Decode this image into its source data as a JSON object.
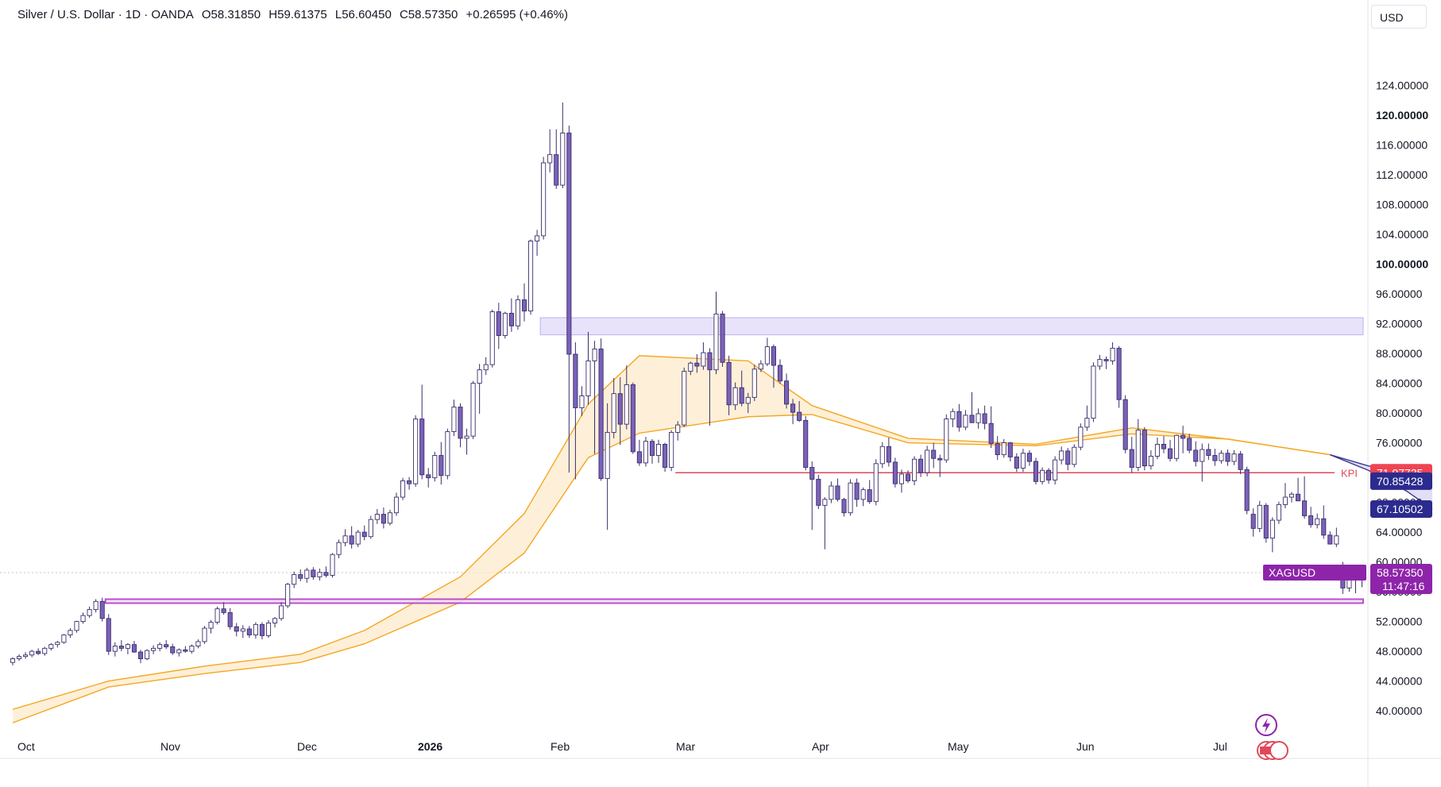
{
  "header": {
    "symbol": "Silver / U.S. Dollar · 1D · OANDA",
    "open": "O58.31850",
    "high": "H59.61375",
    "low": "L56.60450",
    "close": "C58.57350",
    "change": "+0.26595 (+0.46%)"
  },
  "currency_label": "USD",
  "colors": {
    "up_fill": "#ffffff",
    "down_fill": "#7b61b8",
    "candle_outline": "#3b2f6b",
    "ma_band": "#f5a623",
    "kpi_line": "#e0485a",
    "zone_upper": "#b6a8f0",
    "zone_lower": "#b43fc8",
    "price_label": "#8e24aa",
    "navy_label": "#2b2b8f"
  },
  "chart_data": {
    "type": "candlestick",
    "y_axis": {
      "ticks": [
        "124.00000",
        "120.00000",
        "116.00000",
        "112.00000",
        "108.00000",
        "104.00000",
        "100.00000",
        "96.00000",
        "92.00000",
        "88.00000",
        "84.00000",
        "80.00000",
        "76.00000",
        "72.00000",
        "68.00000",
        "64.00000",
        "60.00000",
        "56.00000",
        "52.00000",
        "48.00000",
        "44.00000",
        "40.00000"
      ],
      "bold_ticks": [
        "120.00000",
        "100.00000"
      ],
      "ylim": [
        36.6,
        128.0
      ]
    },
    "x_axis": {
      "labels": [
        "Oct",
        "Nov",
        "Dec",
        "2026",
        "Feb",
        "Mar",
        "Apr",
        "May",
        "Jun",
        "Jul"
      ],
      "bold_labels": [
        "2026"
      ]
    },
    "candles": [
      [
        46.5,
        47.2,
        46.1,
        47.0
      ],
      [
        47.0,
        47.6,
        46.7,
        47.3
      ],
      [
        47.3,
        47.9,
        47.0,
        47.5
      ],
      [
        47.5,
        48.2,
        47.2,
        48.0
      ],
      [
        48.0,
        48.4,
        47.5,
        47.7
      ],
      [
        47.7,
        48.6,
        47.4,
        48.4
      ],
      [
        48.4,
        49.1,
        48.1,
        48.9
      ],
      [
        48.9,
        49.4,
        48.5,
        49.2
      ],
      [
        49.2,
        50.3,
        49.0,
        50.2
      ],
      [
        50.2,
        51.1,
        49.8,
        50.8
      ],
      [
        50.8,
        52.1,
        50.5,
        52.0
      ],
      [
        52.0,
        53.2,
        51.7,
        52.8
      ],
      [
        52.8,
        54.0,
        52.5,
        53.6
      ],
      [
        53.6,
        55.0,
        53.2,
        54.7
      ],
      [
        54.7,
        55.2,
        52.0,
        52.4
      ],
      [
        52.4,
        53.0,
        47.5,
        48.0
      ],
      [
        48.0,
        49.2,
        47.3,
        48.7
      ],
      [
        48.7,
        49.5,
        48.0,
        48.4
      ],
      [
        48.4,
        49.1,
        47.6,
        48.9
      ],
      [
        48.9,
        49.4,
        47.8,
        47.9
      ],
      [
        47.9,
        48.2,
        46.4,
        47.0
      ],
      [
        47.0,
        48.3,
        46.8,
        48.1
      ],
      [
        48.1,
        48.8,
        47.6,
        48.4
      ],
      [
        48.4,
        49.2,
        48.0,
        48.9
      ],
      [
        48.9,
        49.5,
        48.3,
        48.6
      ],
      [
        48.6,
        49.0,
        47.5,
        47.8
      ],
      [
        47.8,
        48.4,
        47.3,
        48.2
      ],
      [
        48.2,
        48.7,
        47.8,
        48.0
      ],
      [
        48.0,
        48.9,
        47.7,
        48.7
      ],
      [
        48.7,
        49.6,
        48.4,
        49.3
      ],
      [
        49.3,
        51.4,
        49.0,
        51.1
      ],
      [
        51.1,
        52.2,
        50.4,
        51.9
      ],
      [
        51.9,
        54.0,
        51.6,
        53.7
      ],
      [
        53.7,
        54.6,
        52.9,
        53.2
      ],
      [
        53.2,
        53.8,
        50.9,
        51.3
      ],
      [
        51.3,
        51.8,
        50.0,
        50.7
      ],
      [
        50.7,
        51.5,
        49.8,
        51.0
      ],
      [
        51.0,
        51.4,
        49.8,
        50.2
      ],
      [
        50.2,
        51.9,
        49.7,
        51.6
      ],
      [
        51.6,
        51.9,
        49.6,
        50.1
      ],
      [
        50.1,
        52.2,
        49.8,
        51.8
      ],
      [
        51.8,
        52.6,
        51.2,
        52.4
      ],
      [
        52.4,
        54.6,
        52.1,
        54.1
      ],
      [
        54.1,
        57.2,
        53.8,
        57.0
      ],
      [
        57.0,
        58.7,
        56.5,
        58.3
      ],
      [
        58.3,
        59.0,
        57.4,
        57.8
      ],
      [
        57.8,
        59.2,
        57.2,
        58.9
      ],
      [
        58.9,
        59.3,
        57.6,
        58.0
      ],
      [
        58.0,
        59.1,
        57.5,
        58.6
      ],
      [
        58.6,
        59.4,
        57.9,
        58.2
      ],
      [
        58.2,
        61.2,
        57.9,
        61.0
      ],
      [
        61.0,
        63.0,
        60.5,
        62.6
      ],
      [
        62.6,
        64.4,
        62.1,
        63.5
      ],
      [
        63.5,
        64.8,
        61.8,
        62.4
      ],
      [
        62.4,
        64.3,
        62.0,
        64.0
      ],
      [
        64.0,
        64.9,
        62.9,
        63.4
      ],
      [
        63.4,
        66.2,
        63.1,
        65.7
      ],
      [
        65.7,
        67.1,
        65.1,
        66.4
      ],
      [
        66.4,
        67.3,
        64.5,
        65.2
      ],
      [
        65.2,
        67.0,
        64.9,
        66.6
      ],
      [
        66.6,
        69.3,
        66.2,
        68.7
      ],
      [
        68.7,
        71.3,
        68.3,
        70.9
      ],
      [
        70.9,
        71.4,
        69.7,
        70.5
      ],
      [
        70.5,
        79.7,
        70.1,
        79.2
      ],
      [
        79.2,
        83.8,
        71.1,
        71.7
      ],
      [
        71.7,
        72.6,
        70.0,
        71.3
      ],
      [
        71.3,
        74.8,
        70.8,
        74.3
      ],
      [
        74.3,
        76.1,
        70.4,
        71.6
      ],
      [
        71.6,
        77.9,
        71.1,
        77.5
      ],
      [
        77.5,
        81.8,
        76.9,
        80.8
      ],
      [
        80.8,
        81.3,
        75.4,
        76.6
      ],
      [
        76.6,
        77.9,
        74.4,
        76.9
      ],
      [
        76.9,
        84.3,
        76.5,
        84.0
      ],
      [
        84.0,
        86.6,
        79.9,
        85.8
      ],
      [
        85.8,
        87.5,
        85.1,
        86.5
      ],
      [
        86.5,
        93.9,
        86.1,
        93.6
      ],
      [
        93.6,
        94.8,
        88.6,
        90.4
      ],
      [
        90.4,
        93.6,
        90.0,
        93.4
      ],
      [
        93.4,
        95.4,
        90.9,
        91.7
      ],
      [
        91.7,
        95.8,
        91.2,
        95.2
      ],
      [
        95.2,
        97.4,
        92.3,
        93.7
      ],
      [
        93.7,
        103.3,
        93.2,
        103.1
      ],
      [
        103.1,
        104.6,
        101.1,
        103.8
      ],
      [
        103.8,
        114.4,
        103.3,
        113.6
      ],
      [
        113.6,
        118.1,
        112.3,
        114.7
      ],
      [
        114.7,
        118.1,
        110.1,
        110.6
      ],
      [
        110.6,
        121.7,
        110.2,
        117.6
      ],
      [
        117.6,
        118.6,
        72.0,
        87.9
      ],
      [
        87.9,
        89.5,
        71.1,
        80.7
      ],
      [
        80.7,
        83.6,
        79.6,
        82.3
      ],
      [
        82.3,
        90.9,
        81.1,
        87.0
      ],
      [
        87.0,
        89.7,
        74.5,
        88.6
      ],
      [
        88.6,
        90.0,
        70.9,
        71.2
      ],
      [
        71.2,
        81.3,
        64.3,
        77.4
      ],
      [
        77.4,
        84.7,
        76.6,
        82.6
      ],
      [
        82.6,
        84.8,
        75.7,
        78.5
      ],
      [
        78.5,
        86.4,
        77.8,
        83.8
      ],
      [
        83.8,
        84.1,
        74.5,
        74.8
      ],
      [
        74.8,
        76.4,
        72.9,
        73.3
      ],
      [
        73.3,
        76.8,
        72.8,
        76.2
      ],
      [
        76.2,
        76.5,
        73.2,
        74.3
      ],
      [
        74.3,
        76.4,
        73.3,
        75.8
      ],
      [
        75.8,
        76.0,
        72.1,
        72.7
      ],
      [
        72.7,
        77.7,
        72.2,
        77.4
      ],
      [
        77.4,
        78.9,
        76.3,
        78.4
      ],
      [
        78.4,
        86.1,
        78.1,
        85.6
      ],
      [
        85.6,
        86.9,
        85.1,
        86.7
      ],
      [
        86.7,
        87.9,
        85.4,
        86.3
      ],
      [
        86.3,
        89.5,
        85.8,
        88.1
      ],
      [
        88.1,
        88.7,
        78.3,
        85.8
      ],
      [
        85.8,
        96.3,
        85.2,
        93.3
      ],
      [
        93.3,
        93.7,
        86.2,
        86.8
      ],
      [
        86.8,
        87.7,
        79.7,
        81.1
      ],
      [
        81.1,
        84.1,
        80.4,
        83.4
      ],
      [
        83.4,
        85.7,
        80.9,
        81.3
      ],
      [
        81.3,
        82.7,
        80.0,
        82.1
      ],
      [
        82.1,
        86.5,
        81.6,
        85.9
      ],
      [
        85.9,
        87.1,
        85.5,
        86.6
      ],
      [
        86.6,
        90.1,
        86.3,
        88.9
      ],
      [
        88.9,
        89.2,
        83.4,
        86.4
      ],
      [
        86.4,
        87.2,
        83.9,
        84.3
      ],
      [
        84.3,
        85.3,
        80.6,
        81.2
      ],
      [
        81.2,
        81.9,
        78.5,
        80.1
      ],
      [
        80.1,
        81.6,
        78.8,
        79.0
      ],
      [
        79.0,
        79.6,
        72.3,
        72.7
      ],
      [
        72.7,
        73.5,
        64.3,
        71.1
      ],
      [
        71.1,
        71.7,
        67.1,
        67.6
      ],
      [
        67.6,
        68.7,
        61.7,
        68.4
      ],
      [
        68.4,
        70.8,
        67.9,
        70.2
      ],
      [
        70.2,
        71.2,
        68.1,
        68.4
      ],
      [
        68.4,
        68.6,
        66.1,
        66.6
      ],
      [
        66.6,
        71.1,
        66.2,
        70.6
      ],
      [
        70.6,
        71.2,
        67.4,
        68.4
      ],
      [
        68.4,
        70.0,
        67.5,
        69.7
      ],
      [
        69.7,
        71.0,
        67.8,
        68.1
      ],
      [
        68.1,
        73.8,
        67.6,
        73.2
      ],
      [
        73.2,
        76.1,
        72.6,
        75.5
      ],
      [
        75.5,
        76.7,
        72.8,
        73.4
      ],
      [
        73.4,
        74.0,
        70.0,
        70.5
      ],
      [
        70.5,
        72.4,
        69.3,
        71.8
      ],
      [
        71.8,
        72.3,
        70.6,
        70.9
      ],
      [
        70.9,
        74.2,
        70.3,
        73.8
      ],
      [
        73.8,
        74.4,
        71.4,
        72.0
      ],
      [
        72.0,
        75.6,
        71.5,
        75.0
      ],
      [
        75.0,
        76.0,
        72.6,
        73.9
      ],
      [
        73.9,
        74.4,
        71.4,
        73.7
      ],
      [
        73.7,
        79.8,
        73.3,
        79.2
      ],
      [
        79.2,
        80.6,
        78.1,
        80.2
      ],
      [
        80.2,
        81.2,
        77.5,
        78.1
      ],
      [
        78.1,
        80.4,
        77.7,
        79.7
      ],
      [
        79.7,
        82.8,
        79.1,
        78.7
      ],
      [
        78.7,
        80.6,
        77.9,
        79.9
      ],
      [
        79.9,
        81.0,
        77.8,
        78.6
      ],
      [
        78.6,
        80.9,
        75.3,
        75.9
      ],
      [
        75.9,
        76.9,
        73.7,
        74.4
      ],
      [
        74.4,
        76.5,
        74.0,
        76.0
      ],
      [
        76.0,
        76.1,
        73.5,
        74.1
      ],
      [
        74.1,
        74.6,
        72.1,
        72.6
      ],
      [
        72.6,
        75.2,
        72.1,
        74.6
      ],
      [
        74.6,
        75.0,
        72.9,
        73.5
      ],
      [
        73.5,
        74.0,
        70.4,
        70.8
      ],
      [
        70.8,
        72.7,
        70.4,
        72.3
      ],
      [
        72.3,
        72.6,
        70.5,
        71.0
      ],
      [
        71.0,
        74.2,
        70.4,
        73.7
      ],
      [
        73.7,
        75.5,
        73.1,
        74.9
      ],
      [
        74.9,
        75.3,
        72.3,
        73.1
      ],
      [
        73.1,
        75.8,
        72.7,
        75.4
      ],
      [
        75.4,
        78.6,
        75.0,
        78.1
      ],
      [
        78.1,
        81.0,
        77.6,
        79.3
      ],
      [
        79.3,
        86.8,
        78.8,
        86.3
      ],
      [
        86.3,
        87.8,
        85.8,
        87.2
      ],
      [
        87.2,
        87.6,
        85.9,
        87.0
      ],
      [
        87.0,
        89.5,
        86.5,
        88.7
      ],
      [
        88.7,
        89.0,
        80.7,
        81.8
      ],
      [
        81.8,
        82.4,
        74.6,
        75.1
      ],
      [
        75.1,
        76.8,
        72.0,
        72.7
      ],
      [
        72.7,
        79.2,
        72.2,
        77.7
      ],
      [
        77.7,
        78.1,
        72.3,
        72.9
      ],
      [
        72.9,
        75.0,
        72.4,
        74.2
      ],
      [
        74.2,
        76.7,
        73.8,
        75.8
      ],
      [
        75.8,
        76.9,
        74.6,
        75.2
      ],
      [
        75.2,
        76.4,
        73.5,
        73.9
      ],
      [
        73.9,
        77.1,
        73.5,
        77.0
      ],
      [
        77.0,
        78.3,
        74.6,
        76.6
      ],
      [
        76.6,
        77.2,
        74.6,
        75.0
      ],
      [
        75.0,
        76.2,
        72.8,
        73.5
      ],
      [
        73.5,
        75.9,
        70.8,
        75.1
      ],
      [
        75.1,
        75.9,
        73.7,
        74.3
      ],
      [
        74.3,
        75.2,
        72.9,
        73.6
      ],
      [
        73.6,
        75.0,
        73.2,
        74.6
      ],
      [
        74.6,
        75.1,
        72.9,
        73.5
      ],
      [
        73.5,
        75.0,
        73.0,
        74.5
      ],
      [
        74.5,
        74.9,
        71.8,
        72.4
      ],
      [
        72.4,
        72.8,
        66.4,
        66.9
      ],
      [
        66.4,
        67.2,
        63.4,
        64.5
      ],
      [
        64.5,
        68.2,
        64.0,
        67.6
      ],
      [
        67.6,
        67.9,
        62.6,
        63.2
      ],
      [
        63.2,
        66.0,
        61.3,
        65.6
      ],
      [
        65.6,
        68.1,
        65.1,
        67.7
      ],
      [
        67.7,
        70.6,
        67.2,
        68.7
      ],
      [
        68.7,
        69.4,
        68.0,
        69.1
      ],
      [
        69.1,
        71.3,
        68.6,
        68.2
      ],
      [
        68.2,
        71.5,
        65.8,
        66.2
      ],
      [
        66.2,
        67.4,
        64.6,
        65.0
      ],
      [
        65.0,
        66.5,
        64.5,
        65.8
      ],
      [
        65.8,
        67.6,
        63.1,
        63.6
      ],
      [
        63.6,
        64.1,
        62.4,
        62.4
      ],
      [
        62.4,
        64.6,
        62.0,
        63.5
      ],
      [
        59.4,
        60.0,
        55.7,
        56.5
      ],
      [
        56.5,
        58.3,
        56.0,
        57.9
      ],
      [
        57.9,
        58.6,
        55.8,
        58.5
      ],
      [
        58.3,
        59.6,
        56.6,
        58.6
      ]
    ],
    "ma_band": {
      "upper": [
        [
          0,
          40.2
        ],
        [
          15,
          44.0
        ],
        [
          30,
          46.0
        ],
        [
          45,
          47.6
        ],
        [
          55,
          50.8
        ],
        [
          70,
          58.0
        ],
        [
          80,
          66.5
        ],
        [
          90,
          81.2
        ],
        [
          98,
          87.7
        ],
        [
          115,
          87.0
        ],
        [
          125,
          81.0
        ],
        [
          140,
          76.6
        ],
        [
          160,
          75.8
        ],
        [
          175,
          78.0
        ],
        [
          190,
          76.5
        ],
        [
          206,
          74.4
        ]
      ],
      "lower": [
        [
          0,
          38.4
        ],
        [
          15,
          43.2
        ],
        [
          30,
          45.0
        ],
        [
          45,
          46.5
        ],
        [
          55,
          49.0
        ],
        [
          70,
          54.6
        ],
        [
          80,
          61.2
        ],
        [
          90,
          74.0
        ],
        [
          98,
          77.3
        ],
        [
          115,
          79.5
        ],
        [
          125,
          79.8
        ],
        [
          140,
          76.0
        ],
        [
          160,
          75.6
        ],
        [
          175,
          77.2
        ],
        [
          190,
          76.5
        ],
        [
          206,
          74.4
        ]
      ]
    },
    "blue_band": {
      "upper": [
        [
          206,
          74.4
        ],
        [
          212,
          72.9
        ],
        [
          218,
          71.9
        ],
        [
          222,
          70.5
        ]
      ],
      "lower": [
        [
          206,
          74.4
        ],
        [
          212,
          72.3
        ],
        [
          218,
          69.5
        ],
        [
          222,
          67.1
        ]
      ]
    },
    "zones": [
      {
        "top": 92.8,
        "bottom": 90.5,
        "start": 83,
        "end": 222
      },
      {
        "top": 55.0,
        "bottom": 54.5,
        "start": 15,
        "end": 222
      }
    ],
    "kpi": {
      "value": 71.97735,
      "start": 104,
      "label": "KPI"
    },
    "last_price": 58.5735,
    "price_labels": [
      {
        "text": "71.97735",
        "value": 71.97735,
        "color": "#ef4352"
      },
      {
        "text": "70.85428",
        "value": 70.85428,
        "color": "#2b2b8f"
      },
      {
        "text": "67.10502",
        "value": 67.10502,
        "color": "#2b2b8f"
      }
    ],
    "last_label": {
      "symbol": "XAGUSD",
      "price": "58.57350",
      "countdown": "11:47:16"
    }
  }
}
